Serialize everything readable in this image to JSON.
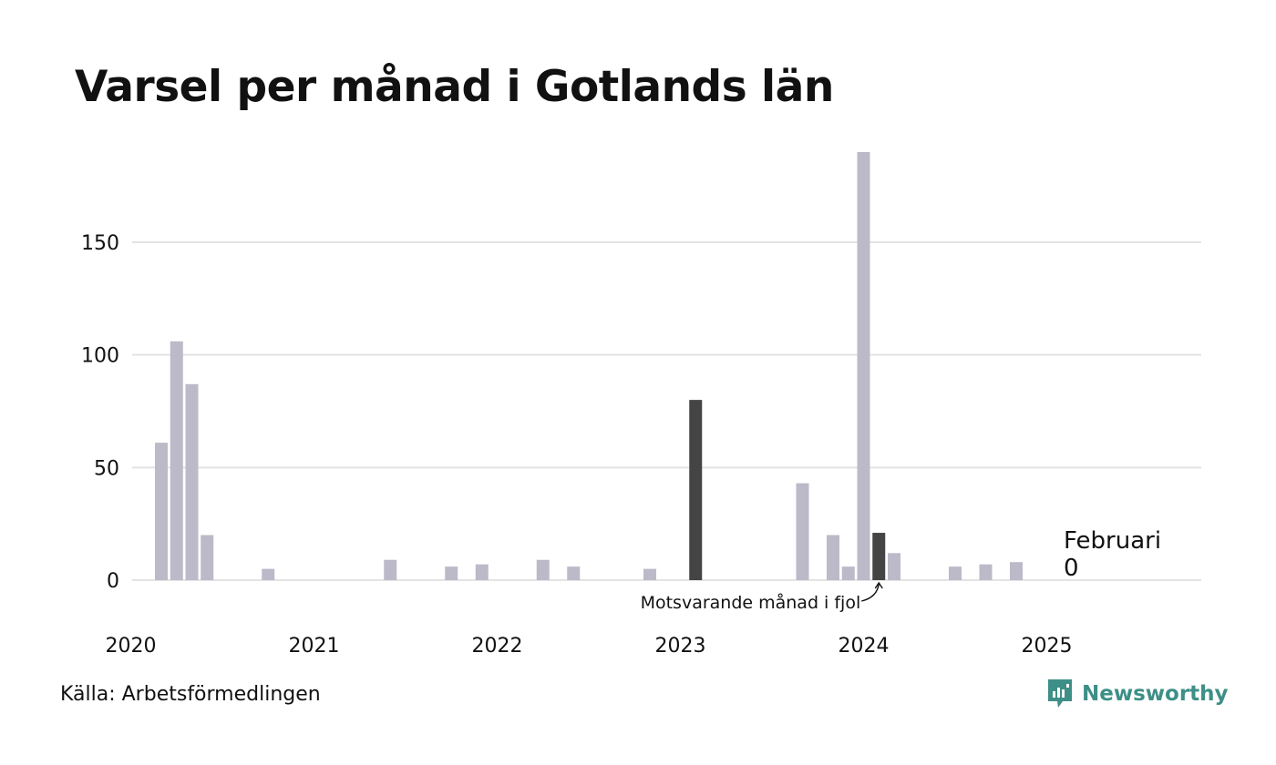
{
  "title": "Varsel per månad i Gotlands län",
  "source": "Källa: Arbetsförmedlingen",
  "brand": {
    "name": "Newsworthy",
    "icon": "newsworthy-logo-icon",
    "color": "#3d8f87"
  },
  "chart_data": {
    "type": "bar",
    "ylim": [
      0,
      190
    ],
    "yticks": [
      0,
      50,
      100,
      150
    ],
    "grid": true,
    "x_start": "2020-01",
    "x_end": "2025-11",
    "xtick_labels": [
      "2020",
      "2021",
      "2022",
      "2023",
      "2024",
      "2025"
    ],
    "colors": {
      "default": "#bcb9c9",
      "highlight": "#444444",
      "grid": "#e3e3e3"
    },
    "series": [
      {
        "values": [
          {
            "month": "2020-03",
            "value": 61
          },
          {
            "month": "2020-04",
            "value": 106
          },
          {
            "month": "2020-05",
            "value": 87
          },
          {
            "month": "2020-06",
            "value": 20
          },
          {
            "month": "2020-10",
            "value": 5
          },
          {
            "month": "2021-06",
            "value": 9
          },
          {
            "month": "2021-10",
            "value": 6
          },
          {
            "month": "2021-12",
            "value": 7
          },
          {
            "month": "2022-04",
            "value": 9
          },
          {
            "month": "2022-06",
            "value": 6
          },
          {
            "month": "2022-11",
            "value": 5
          },
          {
            "month": "2023-02",
            "value": 80,
            "highlight": true
          },
          {
            "month": "2023-09",
            "value": 43
          },
          {
            "month": "2023-11",
            "value": 20
          },
          {
            "month": "2023-12",
            "value": 6
          },
          {
            "month": "2024-01",
            "value": 190
          },
          {
            "month": "2024-02",
            "value": 21,
            "highlight": true
          },
          {
            "month": "2024-03",
            "value": 12
          },
          {
            "month": "2024-07",
            "value": 6
          },
          {
            "month": "2024-09",
            "value": 7
          },
          {
            "month": "2024-11",
            "value": 8
          }
        ]
      }
    ],
    "annotations": [
      {
        "text": "Motsvarande månad i fjol",
        "target_month": "2024-02"
      }
    ],
    "callout": {
      "month_label": "Februari",
      "value_label": "0"
    }
  }
}
